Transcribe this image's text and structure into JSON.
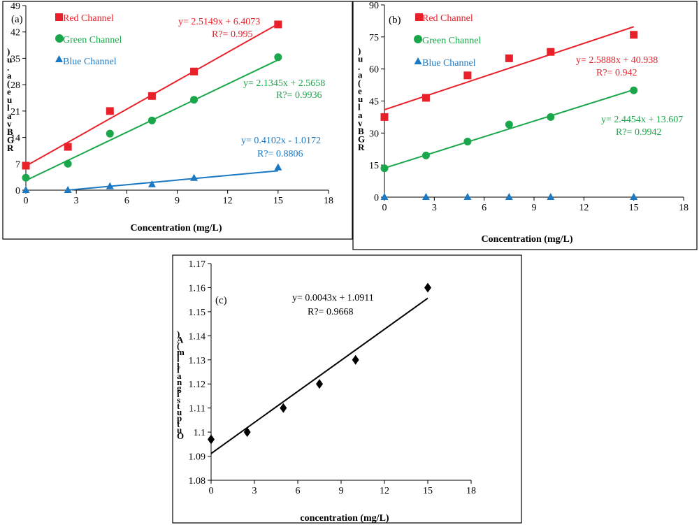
{
  "chart_data": [
    {
      "id": "a",
      "type": "scatter",
      "panel_label": "(a)",
      "xlabel": "Concentration (mg/L)",
      "ylabel_fragments": [
        ")",
        "u",
        ".",
        "a",
        "(",
        "e",
        "u",
        "l",
        "a",
        "v",
        "B",
        "G",
        "R"
      ],
      "xlim": [
        0,
        18
      ],
      "ylim": [
        0,
        49
      ],
      "xticks": [
        "0",
        "3",
        "6",
        "9",
        "12",
        "15",
        "18"
      ],
      "yticks": [
        "0",
        "7",
        "14",
        "21",
        "28",
        "35",
        "42",
        "49"
      ],
      "legend_position": "top-left",
      "series": [
        {
          "name": "Red Channel",
          "color": "#e8202a",
          "marker": "square",
          "x": [
            0,
            2.5,
            5,
            7.5,
            10,
            15
          ],
          "y": [
            6.5,
            11.5,
            21,
            25,
            31.5,
            44
          ],
          "fit": {
            "slope": 2.5149,
            "intercept": 6.4073,
            "x_range": [
              0,
              15
            ]
          },
          "equation": "y= 2.5149x + 6.4073",
          "r2": "R?= 0.995"
        },
        {
          "name": "Green Channel",
          "color": "#1aa64a",
          "marker": "circle",
          "x": [
            0,
            2.5,
            5,
            7.5,
            10,
            15
          ],
          "y": [
            3.3,
            7,
            15,
            18.5,
            24,
            35.3
          ],
          "fit": {
            "slope": 2.1345,
            "intercept": 2.5658,
            "x_range": [
              0,
              15
            ]
          },
          "equation": "y= 2.1345x + 2.5658",
          "r2": "R?= 0.9936"
        },
        {
          "name": "Blue Channel",
          "color": "#1b78c2",
          "marker": "triangle",
          "x": [
            0,
            2.5,
            5,
            7.5,
            10,
            15
          ],
          "y": [
            0,
            0,
            1,
            1.5,
            3.2,
            6
          ],
          "fit": {
            "slope": 0.4102,
            "intercept": -1.0172,
            "x_range": [
              2.48,
              15
            ]
          },
          "equation": "y= 0.4102x - 1.0172",
          "r2": "R?= 0.8806"
        }
      ]
    },
    {
      "id": "b",
      "type": "scatter",
      "panel_label": "(b)",
      "xlabel": "Concentration (mg/L)",
      "ylabel_fragments": [
        ")",
        "u",
        ".",
        "a",
        "(",
        "e",
        "u",
        "l",
        "a",
        "v",
        "B",
        "G",
        "R"
      ],
      "xlim": [
        0,
        18
      ],
      "ylim": [
        0,
        90
      ],
      "xticks": [
        "0",
        "3",
        "6",
        "9",
        "12",
        "15",
        "18"
      ],
      "yticks": [
        "0",
        "15",
        "30",
        "45",
        "60",
        "75",
        "90"
      ],
      "legend_position": "top-left",
      "series": [
        {
          "name": "Red Channel",
          "color": "#e8202a",
          "marker": "square",
          "x": [
            0,
            2.5,
            5,
            7.5,
            10,
            15
          ],
          "y": [
            37.5,
            46.5,
            57,
            65,
            68,
            76
          ],
          "fit": {
            "slope": 2.5888,
            "intercept": 40.938,
            "x_range": [
              0,
              15
            ]
          },
          "equation": "y= 2.5888x + 40.938",
          "r2": "R?= 0.942"
        },
        {
          "name": "Green Channel",
          "color": "#1aa64a",
          "marker": "circle",
          "x": [
            0,
            2.5,
            5,
            7.5,
            10,
            15
          ],
          "y": [
            13.5,
            19.5,
            26,
            34,
            37.5,
            50
          ],
          "fit": {
            "slope": 2.4454,
            "intercept": 13.607,
            "x_range": [
              0,
              15
            ]
          },
          "equation": "y= 2.4454x + 13.607",
          "r2": "R?= 0.9942"
        },
        {
          "name": "Blue Channel",
          "color": "#1b78c2",
          "marker": "triangle",
          "x": [
            0,
            2.5,
            5,
            7.5,
            10,
            15
          ],
          "y": [
            0,
            0,
            0,
            0,
            0,
            0
          ],
          "fit": null,
          "equation": "",
          "r2": ""
        }
      ]
    },
    {
      "id": "c",
      "type": "scatter",
      "panel_label": "(c)",
      "xlabel": "concentration (mg/L)",
      "ylabel_fragments": [
        ")",
        "A",
        "(",
        "m",
        "l",
        "i",
        "f",
        "a",
        "n",
        "g",
        "i",
        "s",
        "t",
        "u",
        "p",
        "t",
        "u",
        "O"
      ],
      "xlim": [
        0,
        18
      ],
      "ylim": [
        1.08,
        1.17
      ],
      "xticks": [
        "0",
        "3",
        "6",
        "9",
        "12",
        "15",
        "18"
      ],
      "yticks": [
        "1.08",
        "1.09",
        "1.1",
        "1.11",
        "1.12",
        "1.13",
        "1.14",
        "1.15",
        "1.16",
        "1.17"
      ],
      "series": [
        {
          "name": "Output signal",
          "color": "#000000",
          "marker": "diamond",
          "x": [
            0,
            2.5,
            5,
            7.5,
            10,
            15
          ],
          "y": [
            1.097,
            1.1,
            1.11,
            1.12,
            1.13,
            1.16
          ],
          "fit": {
            "slope": 0.0043,
            "intercept": 1.0911,
            "x_range": [
              0,
              15
            ]
          },
          "equation": "y= 0.0043x + 1.0911",
          "r2": "R?= 0.9668"
        }
      ]
    }
  ]
}
